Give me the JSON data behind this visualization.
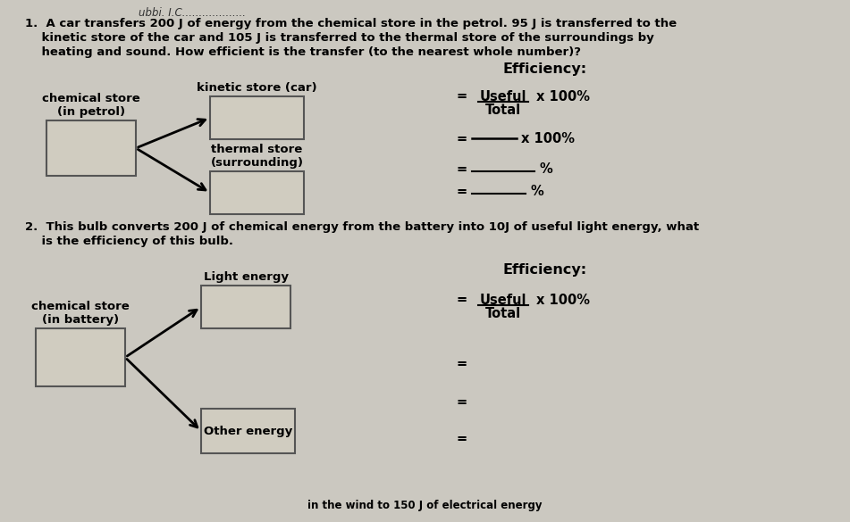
{
  "bg_color": "#cbc8c0",
  "paper_color": "#e8e6e0",
  "box_color": "#d0ccc0",
  "header": "ubbi. I.C...................",
  "title_line1": "1.  A car transfers 200 J of energy from the chemical store in the petrol. 95 J is transferred to the",
  "title_line2": "    kinetic store of the car and 105 J is transferred to the thermal store of the surroundings by",
  "title_line3": "    heating and sound. How efficient is the transfer (to the nearest whole number)?",
  "q2_line1": "2.  This bulb converts 200 J of chemical energy from the battery into 10J of useful light energy, what",
  "q2_line2": "    is the efficiency of this bulb.",
  "eff1_title": "Efficiency:",
  "eff1_num": "Useful",
  "eff1_den": "Total",
  "eff1_suffix": "x 100%",
  "eff2_title": "Efficiency:",
  "eff2_num": "Useful",
  "eff2_den": "Total",
  "eff2_suffix": "x 100%",
  "diag1_src_label": "chemical store\n(in petrol)",
  "diag1_out1_label": "kinetic store (car)",
  "diag1_out2_label": "thermal store\n(surrounding)",
  "diag2_src_label": "chemical store\n(in battery)",
  "diag2_out1_label": "Light energy",
  "diag2_out2_label": "Other energy",
  "bottom_text": "in the wind to 150 J of electrical energy",
  "font_size_body": 9.5,
  "font_size_label": 9.5,
  "font_size_eff": 10.5
}
